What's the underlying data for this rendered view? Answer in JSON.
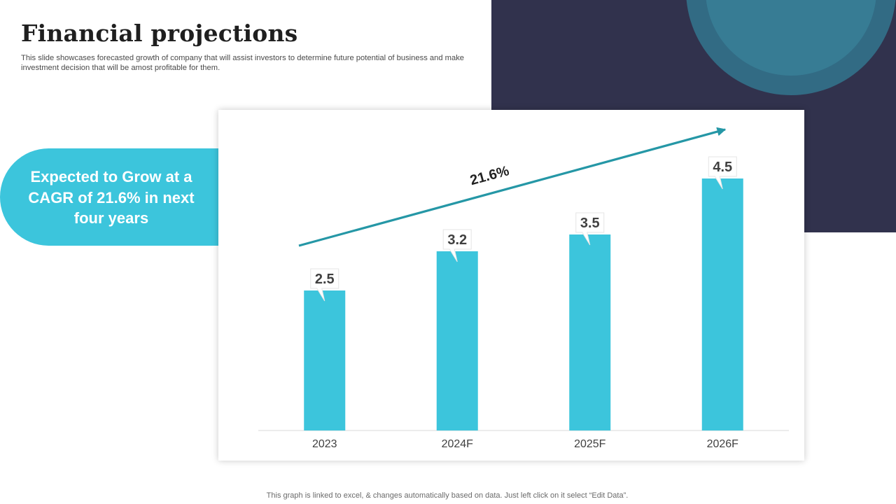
{
  "header": {
    "title": "Financial projections",
    "subtitle": "This slide showcases forecasted growth of company that will assist investors to determine future potential of business and make investment decision that will be amost profitable for them."
  },
  "callout": {
    "text": "Expected to Grow at a CAGR of 21.6%  in next four years"
  },
  "footnote": "This graph is linked to excel,  & changes automatically based on data. Just left click on it select “Edit Data”.",
  "colors": {
    "bar": "#3cc5dc",
    "trend_arrow": "#2597a6",
    "dark_panel": "#31324d",
    "circle_outer": "#326b84",
    "circle_inner": "#377c94"
  },
  "chart_data": {
    "type": "bar",
    "title": "",
    "xlabel": "",
    "ylabel": "",
    "categories": [
      "2023",
      "2024F",
      "2025F",
      "2026F"
    ],
    "values": [
      2.5,
      3.2,
      3.5,
      4.5
    ],
    "ylim": [
      0,
      5
    ],
    "grid": false,
    "legend": "none",
    "annotations": [
      {
        "type": "trend-arrow",
        "label": "21.6%"
      }
    ]
  }
}
